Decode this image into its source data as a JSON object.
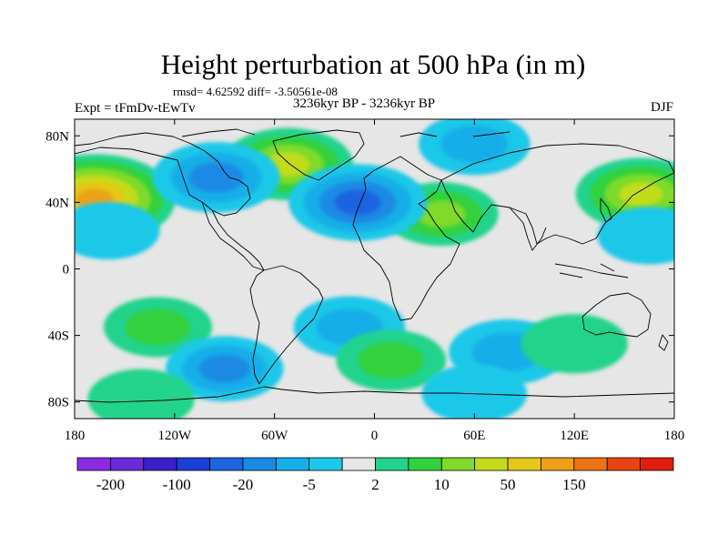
{
  "chart_data": {
    "type": "heatmap",
    "title": "Height perturbation at 500 hPa (in m)",
    "stats_text": "rmsd= 4.62592 diff= -3.50561e-08",
    "left_label": "Expt = tFmDv-tEwTv",
    "center_label": "3236kyr BP - 3236kyr BP",
    "right_label": "DJF",
    "projection": "cylindrical equidistant",
    "lon_range": [
      -180,
      180
    ],
    "lat_range": [
      -90,
      90
    ],
    "y_ticks": [
      {
        "lat": 80,
        "label": "80N"
      },
      {
        "lat": 40,
        "label": "40N"
      },
      {
        "lat": 0,
        "label": "0"
      },
      {
        "lat": -40,
        "label": "40S"
      },
      {
        "lat": -80,
        "label": "80S"
      }
    ],
    "x_ticks": [
      {
        "lon": -180,
        "label": "180"
      },
      {
        "lon": -120,
        "label": "120W"
      },
      {
        "lon": -60,
        "label": "60W"
      },
      {
        "lon": 0,
        "label": "0"
      },
      {
        "lon": 60,
        "label": "60E"
      },
      {
        "lon": 120,
        "label": "120E"
      },
      {
        "lon": 180,
        "label": "180"
      }
    ],
    "colorbar": {
      "colors": [
        "#8a2be2",
        "#6a2bd8",
        "#3c1fc8",
        "#1c3fd6",
        "#1c64e0",
        "#1a8ae4",
        "#16aee8",
        "#1cc8e8",
        "#e6e6e6",
        "#22d38c",
        "#33d13e",
        "#7fda2a",
        "#c2dc1c",
        "#e6c818",
        "#eca214",
        "#ec7414",
        "#e84412",
        "#e01e10"
      ],
      "labels": [
        {
          "index": 1,
          "text": "-200"
        },
        {
          "index": 3,
          "text": "-100"
        },
        {
          "index": 5,
          "text": "-20"
        },
        {
          "index": 7,
          "text": "-5"
        },
        {
          "index": 9,
          "text": "2"
        },
        {
          "index": 11,
          "text": "10"
        },
        {
          "index": 13,
          "text": "50"
        },
        {
          "index": 15,
          "text": "150"
        }
      ]
    },
    "anomaly_centers": [
      {
        "lon": -168,
        "lat": 42,
        "value": 52,
        "level": 14
      },
      {
        "lon": 160,
        "lat": 45,
        "value": 20,
        "level": 12
      },
      {
        "lon": -52,
        "lat": 63,
        "value": 20,
        "level": 12
      },
      {
        "lon": 40,
        "lat": 33,
        "value": 10,
        "level": 11
      },
      {
        "lon": -95,
        "lat": 55,
        "value": -18,
        "level": 5
      },
      {
        "lon": -10,
        "lat": 40,
        "value": -25,
        "level": 4
      },
      {
        "lon": 60,
        "lat": 75,
        "value": -8,
        "level": 6
      },
      {
        "lon": -160,
        "lat": 23,
        "value": -3,
        "level": 7
      },
      {
        "lon": 165,
        "lat": 20,
        "value": -3,
        "level": 7
      },
      {
        "lon": -130,
        "lat": -35,
        "value": 6,
        "level": 10
      },
      {
        "lon": -90,
        "lat": -60,
        "value": -12,
        "level": 5
      },
      {
        "lon": -15,
        "lat": -35,
        "value": -8,
        "level": 6
      },
      {
        "lon": 10,
        "lat": -55,
        "value": 7,
        "level": 10
      },
      {
        "lon": 80,
        "lat": -50,
        "value": -12,
        "level": 6
      },
      {
        "lon": 120,
        "lat": -45,
        "value": 5,
        "level": 9
      },
      {
        "lon": -140,
        "lat": -78,
        "value": 5,
        "level": 9
      },
      {
        "lon": 60,
        "lat": -75,
        "value": -4,
        "level": 7
      }
    ]
  }
}
